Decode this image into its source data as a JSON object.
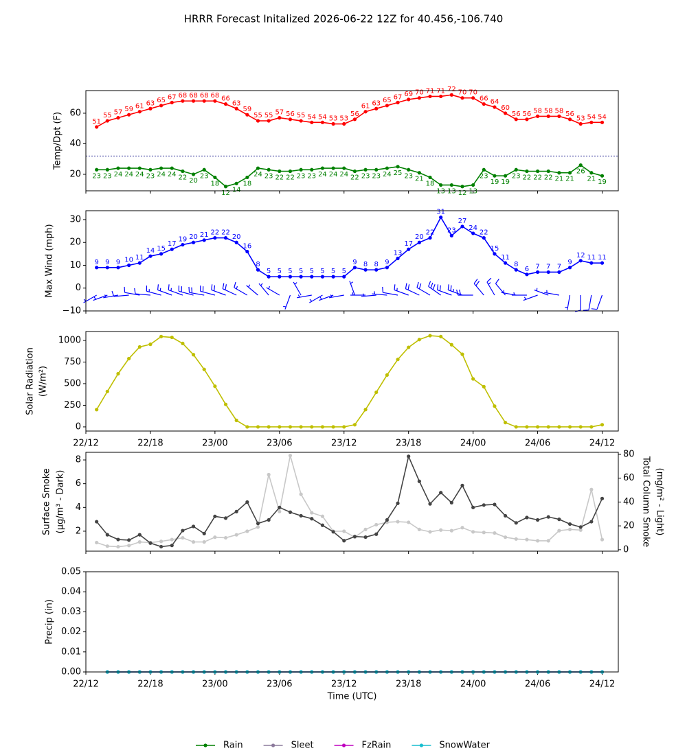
{
  "chart_data": [
    {
      "type": "line",
      "title": "HRRR Forecast Initalized 2026-06-22 12Z for 40.456,-106.740",
      "ylabel": [
        "Temp/Dpt (F)"
      ],
      "x": [
        1,
        2,
        3,
        4,
        5,
        6,
        7,
        8,
        9,
        10,
        11,
        12,
        13,
        14,
        15,
        16,
        17,
        18,
        19,
        20,
        21,
        22,
        23,
        24,
        25,
        26,
        27,
        28,
        29,
        30,
        31,
        32,
        33,
        34,
        35,
        36,
        37,
        38,
        39,
        40,
        41,
        42,
        43,
        44,
        45,
        46,
        47,
        48
      ],
      "xlim": [
        0,
        49.5
      ],
      "xticks": [
        0,
        6,
        12,
        18,
        24,
        30,
        36,
        42,
        48
      ],
      "ylim": [
        9.2,
        74.8
      ],
      "yticks": [
        20,
        40,
        60
      ],
      "hlines": [
        32
      ],
      "series": [
        {
          "color": "#ff0000",
          "labels": "above",
          "values": [
            51,
            55,
            57,
            59,
            61,
            63,
            65,
            67,
            68,
            68,
            68,
            68,
            66,
            63,
            59,
            55,
            55,
            57,
            56,
            55,
            54,
            54,
            53,
            53,
            56,
            61,
            63,
            65,
            67,
            69,
            70,
            71,
            71,
            72,
            70,
            70,
            66,
            64,
            60,
            56,
            56,
            58,
            58,
            58,
            56,
            53,
            54,
            54
          ]
        },
        {
          "color": "#008000",
          "labels": "below",
          "values": [
            23,
            23,
            24,
            24,
            24,
            23,
            24,
            24,
            22,
            20,
            23,
            18,
            12,
            14,
            18,
            24,
            23,
            22,
            22,
            23,
            23,
            24,
            24,
            24,
            22,
            23,
            23,
            24,
            25,
            23,
            21,
            18,
            13,
            13,
            12,
            13,
            23,
            19,
            19,
            23,
            22,
            22,
            22,
            21,
            21,
            26,
            21,
            19
          ]
        }
      ]
    },
    {
      "type": "line",
      "ylabel": [
        "Max Wind (mph)"
      ],
      "x": [
        1,
        2,
        3,
        4,
        5,
        6,
        7,
        8,
        9,
        10,
        11,
        12,
        13,
        14,
        15,
        16,
        17,
        18,
        19,
        20,
        21,
        22,
        23,
        24,
        25,
        26,
        27,
        28,
        29,
        30,
        31,
        32,
        33,
        34,
        35,
        36,
        37,
        38,
        39,
        40,
        41,
        42,
        43,
        44,
        45,
        46,
        47,
        48
      ],
      "xlim": [
        0,
        49.5
      ],
      "xticks": [
        0,
        6,
        12,
        18,
        24,
        30,
        36,
        42,
        48
      ],
      "ylim": [
        -10,
        33.9
      ],
      "yticks": [
        {
          "value": -10,
          "label": "−10"
        },
        0,
        10,
        20,
        30
      ],
      "series": [
        {
          "color": "#0000ff",
          "labels": "above",
          "values": [
            9,
            9,
            9,
            10,
            11,
            14,
            15,
            17,
            19,
            20,
            21,
            22,
            22,
            20,
            16,
            8,
            5,
            5,
            5,
            5,
            5,
            5,
            5,
            5,
            9,
            8,
            8,
            9,
            13,
            17,
            20,
            22,
            31,
            23,
            27,
            24,
            22,
            15,
            11,
            8,
            6,
            7,
            7,
            7,
            9,
            12,
            11,
            11
          ]
        }
      ],
      "wind_direction": [
        240,
        250,
        260,
        265,
        280,
        275,
        285,
        290,
        290,
        285,
        280,
        285,
        290,
        295,
        300,
        310,
        320,
        300,
        200,
        330,
        260,
        240,
        250,
        260,
        340,
        270,
        265,
        275,
        280,
        290,
        295,
        300,
        305,
        290,
        290,
        270,
        320,
        330,
        320,
        280,
        270,
        250,
        290,
        280,
        190,
        180,
        190,
        200
      ]
    },
    {
      "type": "line",
      "ylabel": [
        "Solar Radiation",
        "(W/m²)"
      ],
      "x": [
        1,
        2,
        3,
        4,
        5,
        6,
        7,
        8,
        9,
        10,
        11,
        12,
        13,
        14,
        15,
        16,
        17,
        18,
        19,
        20,
        21,
        22,
        23,
        24,
        25,
        26,
        27,
        28,
        29,
        30,
        31,
        32,
        33,
        34,
        35,
        36,
        37,
        38,
        39,
        40,
        41,
        42,
        43,
        44,
        45,
        46,
        47,
        48
      ],
      "xlim": [
        0,
        49.5
      ],
      "xticks": [
        {
          "value": 0,
          "label": "22/12"
        },
        {
          "value": 6,
          "label": "22/18"
        },
        {
          "value": 12,
          "label": "23/00"
        },
        {
          "value": 18,
          "label": "23/06"
        },
        {
          "value": 24,
          "label": "23/12"
        },
        {
          "value": 30,
          "label": "23/18"
        },
        {
          "value": 36,
          "label": "24/00"
        },
        {
          "value": 42,
          "label": "24/06"
        },
        {
          "value": 48,
          "label": "24/12"
        }
      ],
      "ylim": [
        -48,
        1103
      ],
      "yticks": [
        0,
        250,
        500,
        750,
        1000
      ],
      "series": [
        {
          "color": "#bfbf00",
          "values": [
            200,
            410,
            615,
            790,
            925,
            955,
            1045,
            1035,
            965,
            835,
            665,
            470,
            260,
            75,
            0,
            0,
            0,
            0,
            0,
            0,
            0,
            0,
            0,
            0,
            25,
            200,
            400,
            600,
            780,
            920,
            1010,
            1055,
            1045,
            950,
            840,
            555,
            465,
            240,
            50,
            0,
            0,
            0,
            0,
            0,
            0,
            0,
            0,
            25
          ]
        }
      ]
    },
    {
      "type": "line",
      "ylabel": [
        "Surface Smoke",
        "(μg/m³ - Dark)"
      ],
      "y2label": [
        "Total Column Smoke",
        "(mg/m² - Light)"
      ],
      "x": [
        1,
        2,
        3,
        4,
        5,
        6,
        7,
        8,
        9,
        10,
        11,
        12,
        13,
        14,
        15,
        16,
        17,
        18,
        19,
        20,
        21,
        22,
        23,
        24,
        25,
        26,
        27,
        28,
        29,
        30,
        31,
        32,
        33,
        34,
        35,
        36,
        37,
        38,
        39,
        40,
        41,
        42,
        43,
        44,
        45,
        46,
        47,
        48
      ],
      "xlim": [
        0,
        49.5
      ],
      "xticks": [
        0,
        6,
        12,
        18,
        24,
        30,
        36,
        42,
        48
      ],
      "ylim": [
        0.32,
        8.64
      ],
      "yticks": [
        2,
        4,
        6,
        8
      ],
      "y2lim": [
        -1.2,
        81.7
      ],
      "y2ticks": [
        0,
        20,
        40,
        60,
        80
      ],
      "series": [
        {
          "color": "#c8c8c8",
          "axis": "y2",
          "values": [
            6,
            3,
            2.5,
            3.5,
            6.5,
            6,
            7,
            8.5,
            10,
            6.5,
            6.5,
            10.5,
            10,
            12.5,
            15.5,
            19,
            63,
            32,
            79,
            46.5,
            31,
            28,
            15.5,
            15.5,
            10.5,
            17,
            21,
            23,
            23.5,
            23,
            17,
            15,
            16.5,
            16,
            18.5,
            15,
            14.5,
            14,
            10.5,
            9,
            8.5,
            7.5,
            7.5,
            16,
            17,
            16.5,
            50.5,
            8.5
          ]
        },
        {
          "color": "#444444",
          "values": [
            2.8,
            1.7,
            1.3,
            1.25,
            1.7,
            1.0,
            0.7,
            0.8,
            2.05,
            2.4,
            1.8,
            3.25,
            3.1,
            3.65,
            4.45,
            2.65,
            2.95,
            4.0,
            3.6,
            3.3,
            3.05,
            2.5,
            1.95,
            1.2,
            1.55,
            1.5,
            1.75,
            2.95,
            4.35,
            8.3,
            6.2,
            4.3,
            5.25,
            4.4,
            5.85,
            4.0,
            4.2,
            4.25,
            3.3,
            2.7,
            3.15,
            2.95,
            3.2,
            3.0,
            2.6,
            2.35,
            2.8,
            4.75
          ]
        }
      ]
    },
    {
      "type": "line",
      "ylabel": [
        "Precip (in)"
      ],
      "xlabel": "Time (UTC)",
      "x": [
        2,
        3,
        4,
        5,
        6,
        7,
        8,
        9,
        10,
        11,
        12,
        13,
        14,
        15,
        16,
        17,
        18,
        19,
        20,
        21,
        22,
        23,
        24,
        25,
        26,
        27,
        28,
        29,
        30,
        31,
        32,
        33,
        34,
        35,
        36,
        37,
        38,
        39,
        40,
        41,
        42,
        43,
        44,
        45,
        46,
        47,
        48
      ],
      "xlim": [
        0,
        49.5
      ],
      "xticks": [
        {
          "value": 0,
          "label": "22/12"
        },
        {
          "value": 6,
          "label": "22/18"
        },
        {
          "value": 12,
          "label": "23/00"
        },
        {
          "value": 18,
          "label": "23/06"
        },
        {
          "value": 24,
          "label": "23/12"
        },
        {
          "value": 30,
          "label": "23/18"
        },
        {
          "value": 36,
          "label": "24/00"
        },
        {
          "value": 42,
          "label": "24/06"
        },
        {
          "value": 48,
          "label": "24/12"
        }
      ],
      "ylim": [
        0,
        0.05
      ],
      "yticks": [
        {
          "value": 0,
          "label": "0.00"
        },
        {
          "value": 0.01,
          "label": "0.01"
        },
        {
          "value": 0.02,
          "label": "0.02"
        },
        {
          "value": 0.03,
          "label": "0.03"
        },
        {
          "value": 0.04,
          "label": "0.04"
        },
        {
          "value": 0.05,
          "label": "0.05"
        }
      ],
      "legend": "bottom",
      "series": [
        {
          "name": "Rain",
          "color": "#008000",
          "values": [
            0,
            0,
            0,
            0,
            0,
            0,
            0,
            0,
            0,
            0,
            0,
            0,
            0,
            0,
            0,
            0,
            0,
            0,
            0,
            0,
            0,
            0,
            0,
            0,
            0,
            0,
            0,
            0,
            0,
            0,
            0,
            0,
            0,
            0,
            0,
            0,
            0,
            0,
            0,
            0,
            0,
            0,
            0,
            0,
            0,
            0,
            0
          ]
        },
        {
          "name": "Sleet",
          "color": "#8c7a9c",
          "values": [
            0,
            0,
            0,
            0,
            0,
            0,
            0,
            0,
            0,
            0,
            0,
            0,
            0,
            0,
            0,
            0,
            0,
            0,
            0,
            0,
            0,
            0,
            0,
            0,
            0,
            0,
            0,
            0,
            0,
            0,
            0,
            0,
            0,
            0,
            0,
            0,
            0,
            0,
            0,
            0,
            0,
            0,
            0,
            0,
            0,
            0,
            0
          ]
        },
        {
          "name": "FzRain",
          "color": "#bf00bf",
          "values": [
            0,
            0,
            0,
            0,
            0,
            0,
            0,
            0,
            0,
            0,
            0,
            0,
            0,
            0,
            0,
            0,
            0,
            0,
            0,
            0,
            0,
            0,
            0,
            0,
            0,
            0,
            0,
            0,
            0,
            0,
            0,
            0,
            0,
            0,
            0,
            0,
            0,
            0,
            0,
            0,
            0,
            0,
            0,
            0,
            0,
            0,
            0
          ]
        },
        {
          "name": "SnowWater",
          "color": "#17becf",
          "values": [
            0,
            0,
            0,
            0,
            0,
            0,
            0,
            0,
            0,
            0,
            0,
            0,
            0,
            0,
            0,
            0,
            0,
            0,
            0,
            0,
            0,
            0,
            0,
            0,
            0,
            0,
            0,
            0,
            0,
            0,
            0,
            0,
            0,
            0,
            0,
            0,
            0,
            0,
            0,
            0,
            0,
            0,
            0,
            0,
            0,
            0,
            0
          ]
        }
      ]
    }
  ]
}
